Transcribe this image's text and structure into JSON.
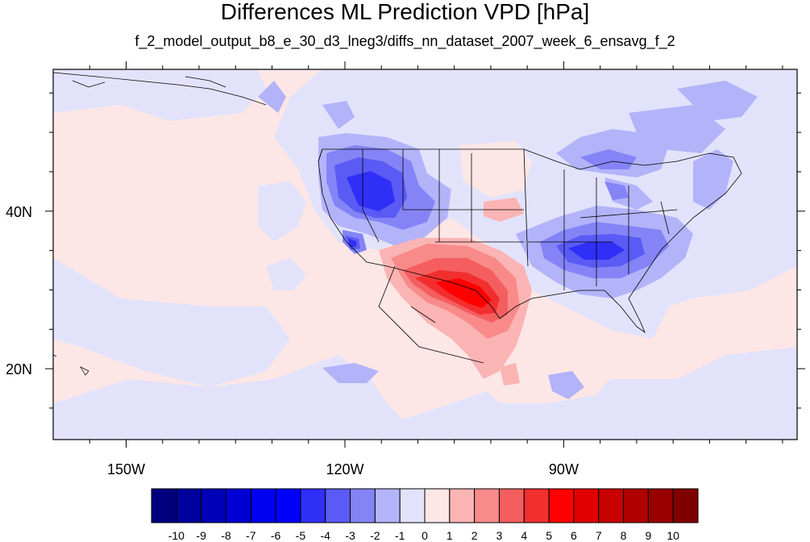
{
  "title": "Differences ML Prediction VPD [hPa]",
  "subtitle": "f_2_model_output_b8_e_30_d3_lneg3/diffs_nn_dataset_2007_week_6_ensavg_f_2",
  "map": {
    "lon_range": [
      -160,
      -58
    ],
    "lat_range": [
      11,
      58
    ],
    "lon_ticks": [
      {
        "value": -150,
        "label": "150W"
      },
      {
        "value": -120,
        "label": "120W"
      },
      {
        "value": -90,
        "label": "90W"
      }
    ],
    "lat_ticks": [
      {
        "value": 40,
        "label": "40N"
      },
      {
        "value": 20,
        "label": "20N"
      }
    ],
    "background_color": "#fde6e6"
  },
  "colorbar": {
    "labels": [
      "-10",
      "-9",
      "-8",
      "-7",
      "-6",
      "-5",
      "-4",
      "-3",
      "-2",
      "-1",
      "0",
      "1",
      "2",
      "3",
      "4",
      "5",
      "6",
      "7",
      "8",
      "9",
      "10"
    ],
    "colors": [
      "#00007f",
      "#00009c",
      "#0000b8",
      "#0000d4",
      "#0000f0",
      "#0000ff",
      "#2f2ff7",
      "#5a5af5",
      "#8484f7",
      "#b3b3fa",
      "#e2e3fb",
      "#fde6e6",
      "#fbb4b4",
      "#f88a8a",
      "#f55e5e",
      "#f22f2f",
      "#ff0000",
      "#e00000",
      "#c80000",
      "#b00000",
      "#980000",
      "#800000"
    ]
  }
}
